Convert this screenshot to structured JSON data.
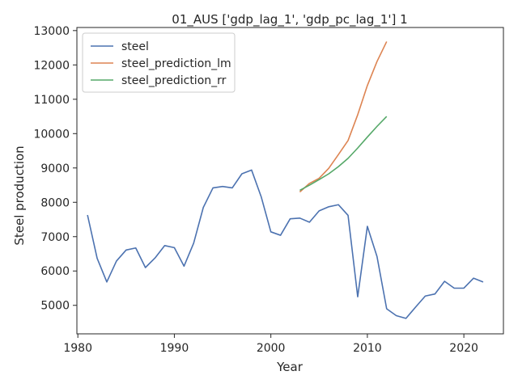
{
  "chart_data": {
    "type": "line",
    "title": "01_AUS ['gdp_lag_1', 'gdp_pc_lag_1'] 1",
    "xlabel": "Year",
    "ylabel": "Steel production",
    "xlim": [
      1979.9,
      2024.1
    ],
    "ylim": [
      4170,
      13090
    ],
    "x_ticks": [
      1980,
      1990,
      2000,
      2010,
      2020
    ],
    "y_ticks": [
      5000,
      6000,
      7000,
      8000,
      9000,
      10000,
      11000,
      12000,
      13000
    ],
    "grid": false,
    "legend_position": "top-left",
    "series": [
      {
        "name": "steel",
        "color": "#4c72b0",
        "x": [
          1981,
          1982,
          1983,
          1984,
          1985,
          1986,
          1987,
          1988,
          1989,
          1990,
          1991,
          1992,
          1993,
          1994,
          1995,
          1996,
          1997,
          1998,
          1999,
          2000,
          2001,
          2002,
          2003,
          2004,
          2005,
          2006,
          2007,
          2008,
          2009,
          2010,
          2011,
          2012,
          2013,
          2014,
          2015,
          2016,
          2017,
          2018,
          2019,
          2020,
          2021,
          2022
        ],
        "y": [
          7630,
          6370,
          5680,
          6290,
          6610,
          6670,
          6100,
          6380,
          6740,
          6680,
          6140,
          6810,
          7850,
          8420,
          8460,
          8420,
          8830,
          8940,
          8160,
          7140,
          7040,
          7520,
          7540,
          7420,
          7750,
          7870,
          7930,
          7620,
          5250,
          7300,
          6420,
          4900,
          4700,
          4620,
          4950,
          5270,
          5330,
          5700,
          5500,
          5500,
          5790,
          5680
        ]
      },
      {
        "name": "steel_prediction_lm",
        "color": "#dd8452",
        "x": [
          2003,
          2004,
          2005,
          2006,
          2007,
          2008,
          2009,
          2010,
          2011,
          2012
        ],
        "y": [
          8300,
          8550,
          8700,
          8990,
          9390,
          9800,
          10550,
          11400,
          12100,
          12680
        ]
      },
      {
        "name": "steel_prediction_rr",
        "color": "#55a868",
        "x": [
          2003,
          2004,
          2005,
          2006,
          2007,
          2008,
          2009,
          2010,
          2011,
          2012
        ],
        "y": [
          8350,
          8500,
          8660,
          8830,
          9040,
          9280,
          9580,
          9900,
          10210,
          10500
        ]
      }
    ]
  }
}
